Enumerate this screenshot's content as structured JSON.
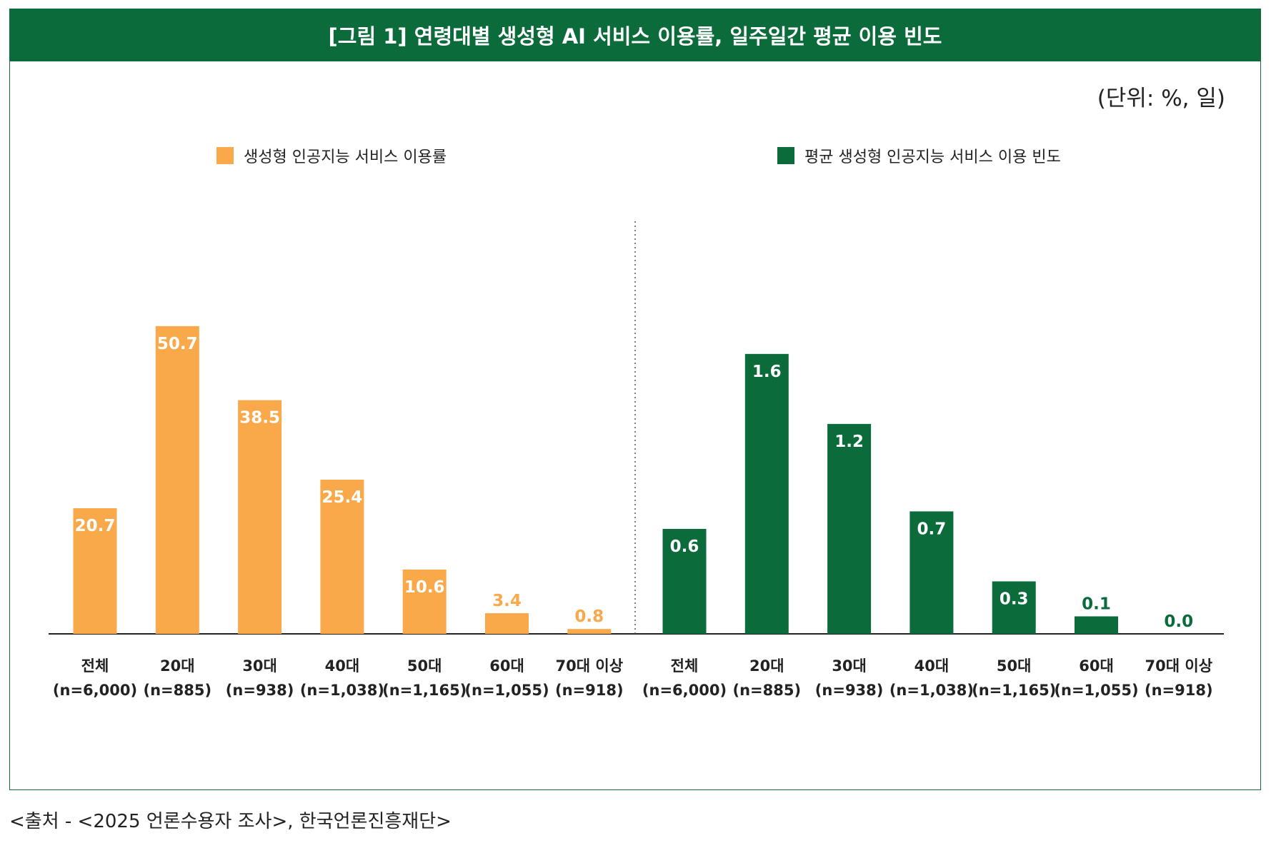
{
  "title": "[그림 1] 연령대별 생성형 AI 서비스 이용률, 일주일간 평균 이용 빈도",
  "unit": "(단위: %, 일)",
  "source": "<출처 - <2025 언론수용자 조사>, 한국언론진흥재단>",
  "colors": {
    "orange": "#f9a84a",
    "green": "#0b6b3a",
    "title_bg": "#0b6b3a"
  },
  "legend": [
    {
      "label": "생성형 인공지능 서비스 이용률",
      "color": "#f9a84a"
    },
    {
      "label": "평균 생성형 인공지능 서비스 이용 빈도",
      "color": "#0b6b3a"
    }
  ],
  "chart_data": [
    {
      "type": "bar",
      "categories": [
        "전체",
        "20대",
        "30대",
        "40대",
        "50대",
        "60대",
        "70대 이상"
      ],
      "sample_sizes": [
        "(n=6,000)",
        "(n=885)",
        "(n=938)",
        "(n=1,038)",
        "(n=1,165)",
        "(n=1,055)",
        "(n=918)"
      ],
      "series": [
        {
          "name": "생성형 인공지능 서비스 이용률",
          "values": [
            20.7,
            50.7,
            38.5,
            25.4,
            10.6,
            3.4,
            0.8
          ],
          "labels": [
            "20.7",
            "50.7",
            "38.5",
            "25.4",
            "10.6",
            "3.4",
            "0.8"
          ]
        }
      ],
      "ylim": [
        0,
        58.8
      ]
    },
    {
      "type": "bar",
      "categories": [
        "전체",
        "20대",
        "30대",
        "40대",
        "50대",
        "60대",
        "70대 이상"
      ],
      "sample_sizes": [
        "(n=6,000)",
        "(n=885)",
        "(n=938)",
        "(n=1,038)",
        "(n=1,165)",
        "(n=1,055)",
        "(n=918)"
      ],
      "series": [
        {
          "name": "평균 생성형 인공지능 서비스 이용 빈도",
          "values": [
            0.6,
            1.6,
            1.2,
            0.7,
            0.3,
            0.1,
            0.0
          ],
          "labels": [
            "0.6",
            "1.6",
            "1.2",
            "0.7",
            "0.3",
            "0.1",
            "0.0"
          ]
        }
      ],
      "ylim": [
        0,
        2.04
      ]
    }
  ]
}
